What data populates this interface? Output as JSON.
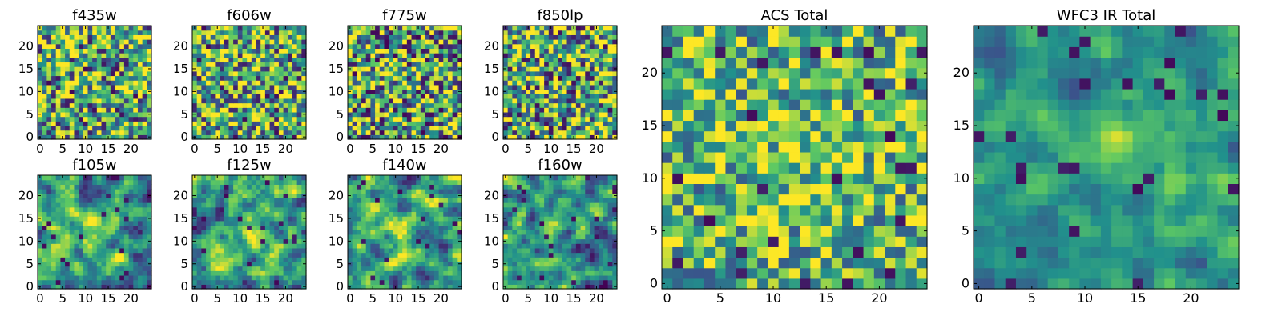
{
  "figure": {
    "colormap": [
      "#440154",
      "#3b528b",
      "#21918c",
      "#5ec962",
      "#fde725"
    ]
  },
  "chart_data": [
    {
      "type": "heatmap",
      "title": "f435w",
      "x_ticks": [
        "0",
        "5",
        "10",
        "15",
        "20"
      ],
      "y_ticks": [
        "0",
        "5",
        "10",
        "15",
        "20"
      ],
      "grid_size": [
        25,
        25
      ],
      "xlim": [
        0,
        25
      ],
      "ylim": [
        0,
        25
      ],
      "grid": false,
      "signal": "noise"
    },
    {
      "type": "heatmap",
      "title": "f606w",
      "x_ticks": [
        "0",
        "5",
        "10",
        "15",
        "20"
      ],
      "y_ticks": [
        "0",
        "5",
        "10",
        "15",
        "20"
      ],
      "grid_size": [
        25,
        25
      ],
      "xlim": [
        0,
        25
      ],
      "ylim": [
        0,
        25
      ],
      "grid": false,
      "signal": "noise"
    },
    {
      "type": "heatmap",
      "title": "f775w",
      "x_ticks": [
        "0",
        "5",
        "10",
        "15",
        "20"
      ],
      "y_ticks": [
        "0",
        "5",
        "10",
        "15",
        "20"
      ],
      "grid_size": [
        25,
        25
      ],
      "xlim": [
        0,
        25
      ],
      "ylim": [
        0,
        25
      ],
      "grid": false,
      "signal": "noise"
    },
    {
      "type": "heatmap",
      "title": "f850lp",
      "x_ticks": [
        "0",
        "5",
        "10",
        "15",
        "20"
      ],
      "y_ticks": [
        "0",
        "5",
        "10",
        "15",
        "20"
      ],
      "grid_size": [
        25,
        25
      ],
      "xlim": [
        0,
        25
      ],
      "ylim": [
        0,
        25
      ],
      "grid": false,
      "signal": "noise"
    },
    {
      "type": "heatmap",
      "title": "f105w",
      "x_ticks": [
        "0",
        "5",
        "10",
        "15",
        "20"
      ],
      "y_ticks": [
        "0",
        "5",
        "10",
        "15",
        "20"
      ],
      "grid_size": [
        25,
        25
      ],
      "xlim": [
        0,
        25
      ],
      "ylim": [
        0,
        25
      ],
      "grid": false,
      "signal": "faint central source"
    },
    {
      "type": "heatmap",
      "title": "f125w",
      "x_ticks": [
        "0",
        "5",
        "10",
        "15",
        "20"
      ],
      "y_ticks": [
        "0",
        "5",
        "10",
        "15",
        "20"
      ],
      "grid_size": [
        25,
        25
      ],
      "xlim": [
        0,
        25
      ],
      "ylim": [
        0,
        25
      ],
      "grid": false,
      "signal": "faint central source"
    },
    {
      "type": "heatmap",
      "title": "f140w",
      "x_ticks": [
        "0",
        "5",
        "10",
        "15",
        "20"
      ],
      "y_ticks": [
        "0",
        "5",
        "10",
        "15",
        "20"
      ],
      "grid_size": [
        25,
        25
      ],
      "xlim": [
        0,
        25
      ],
      "ylim": [
        0,
        25
      ],
      "grid": false,
      "signal": "faint central source"
    },
    {
      "type": "heatmap",
      "title": "f160w",
      "x_ticks": [
        "0",
        "5",
        "10",
        "15",
        "20"
      ],
      "y_ticks": [
        "0",
        "5",
        "10",
        "15",
        "20"
      ],
      "grid_size": [
        25,
        25
      ],
      "xlim": [
        0,
        25
      ],
      "ylim": [
        0,
        25
      ],
      "grid": false,
      "signal": "central source"
    },
    {
      "type": "heatmap",
      "title": "ACS Total",
      "x_ticks": [
        "0",
        "5",
        "10",
        "15",
        "20"
      ],
      "y_ticks": [
        "0",
        "5",
        "10",
        "15",
        "20"
      ],
      "grid_size": [
        25,
        25
      ],
      "xlim": [
        0,
        25
      ],
      "ylim": [
        0,
        25
      ],
      "grid": false,
      "signal": "noise with bright patches"
    },
    {
      "type": "heatmap",
      "title": "WFC3 IR Total",
      "x_ticks": [
        "0",
        "5",
        "10",
        "15",
        "20"
      ],
      "y_ticks": [
        "0",
        "5",
        "10",
        "15",
        "20"
      ],
      "grid_size": [
        25,
        25
      ],
      "xlim": [
        0,
        25
      ],
      "ylim": [
        0,
        25
      ],
      "grid": false,
      "signal": "bright central source near (13, 12)"
    }
  ]
}
